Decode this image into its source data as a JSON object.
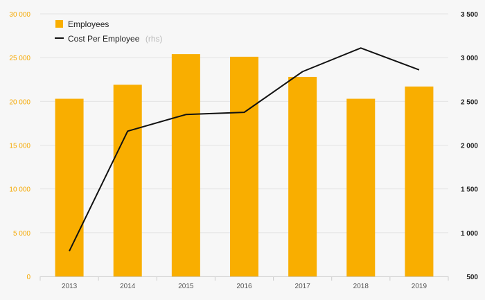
{
  "chart_data": {
    "type": "bar+line",
    "categories": [
      "2013",
      "2014",
      "2015",
      "2016",
      "2017",
      "2018",
      "2019"
    ],
    "series": [
      {
        "name": "Employees",
        "type": "bar",
        "axis": "left",
        "color": "#f9ae00",
        "values": [
          20300,
          21900,
          25400,
          25100,
          22800,
          20300,
          21700
        ]
      },
      {
        "name": "Cost Per Employee",
        "name_suffix": "(rhs)",
        "type": "line",
        "axis": "right",
        "color": "#111111",
        "values": [
          790,
          2160,
          2350,
          2375,
          2840,
          3110,
          2860
        ]
      }
    ],
    "y_left": {
      "min": 0,
      "max": 30000,
      "ticks": [
        0,
        5000,
        10000,
        15000,
        20000,
        25000,
        30000
      ],
      "tick_labels": [
        "0",
        "5 000",
        "10 000",
        "15 000",
        "20 000",
        "25 000",
        "30 000"
      ]
    },
    "y_right": {
      "min": 500,
      "max": 3500,
      "ticks": [
        500,
        1000,
        1500,
        2000,
        2500,
        3000,
        3500
      ],
      "tick_labels": [
        "500",
        "1 000",
        "1 500",
        "2 000",
        "2 500",
        "3 000",
        "3 500"
      ]
    },
    "grid": true,
    "legend": "top-left"
  }
}
